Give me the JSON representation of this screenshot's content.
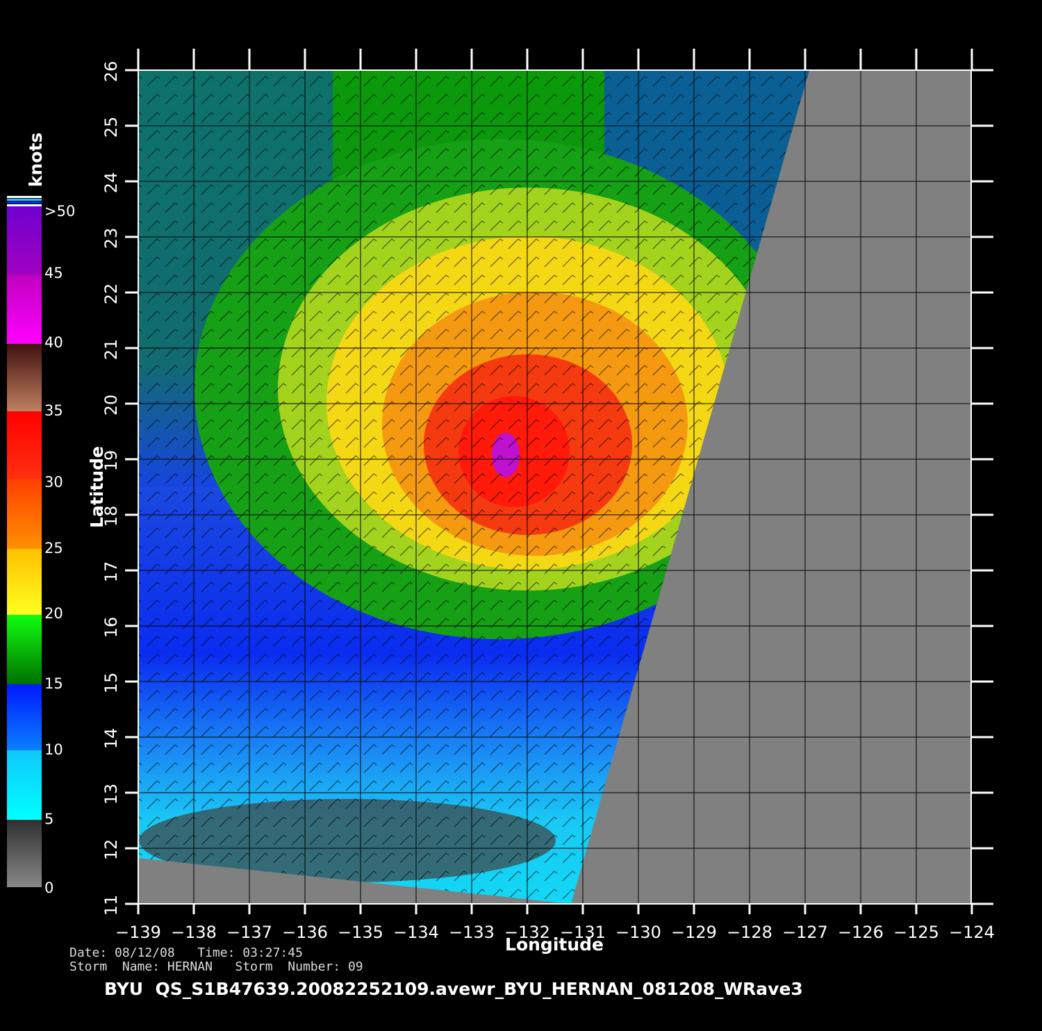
{
  "colorbar": {
    "title": "knots",
    "labels": [
      "0",
      "5",
      "10",
      "15",
      "20",
      "25",
      "30",
      "35",
      "40",
      "45",
      ">50"
    ]
  },
  "axes": {
    "x_label": "Longitude",
    "y_label": "Latitude",
    "x_ticks": [
      "−139",
      "−138",
      "−137",
      "−136",
      "−135",
      "−134",
      "−133",
      "−132",
      "−131",
      "−130",
      "−129",
      "−128",
      "−127",
      "−126",
      "−125",
      "−124"
    ],
    "y_ticks": [
      "11",
      "12",
      "13",
      "14",
      "15",
      "16",
      "17",
      "18",
      "19",
      "20",
      "21",
      "22",
      "23",
      "24",
      "25",
      "26"
    ]
  },
  "footer": {
    "line1": "Date: 08/12/08   Time: 03:27:45",
    "line2": "Storm  Name: HERNAN   Storm  Number: 09",
    "caption": "BYU  QS_S1B47639.20082252109.avewr_BYU_HERNAN_081208_WRave3"
  }
}
